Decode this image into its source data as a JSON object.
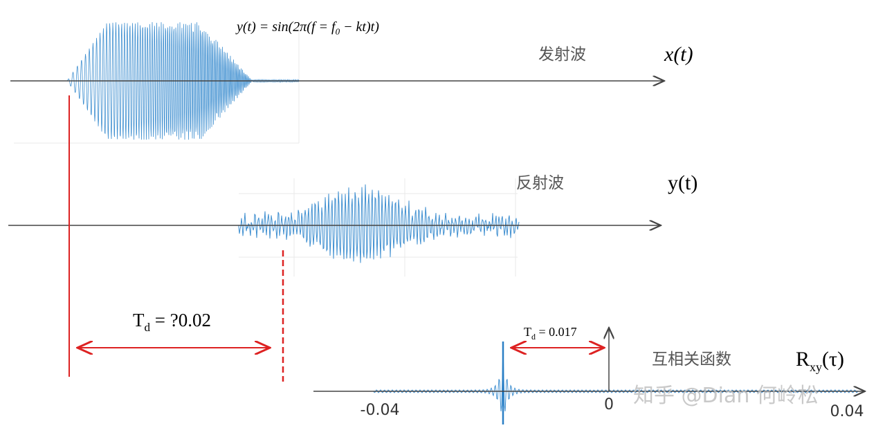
{
  "formula": {
    "lhs": "y(t)",
    "rhs": "= sin(2π(f = f",
    "sub": "0",
    "tail": " − kt)t)"
  },
  "transmit": {
    "label": "发射波",
    "symbol": "x(t)"
  },
  "reflect": {
    "label": "反射波",
    "symbol": "y(t)"
  },
  "delay_estimate": {
    "main": "T",
    "sub": "d",
    "rest": " = ?0.02"
  },
  "delay_measured": {
    "main": "T",
    "sub": "d",
    "rest": " = 0.017"
  },
  "correlation": {
    "label": "互相关函数",
    "main": "R",
    "sub": "xy",
    "rest": "(τ)"
  },
  "axis_ticks": [
    "-0.04",
    "0",
    "0.04"
  ],
  "watermark": "知乎 @Dian 何岭松"
}
